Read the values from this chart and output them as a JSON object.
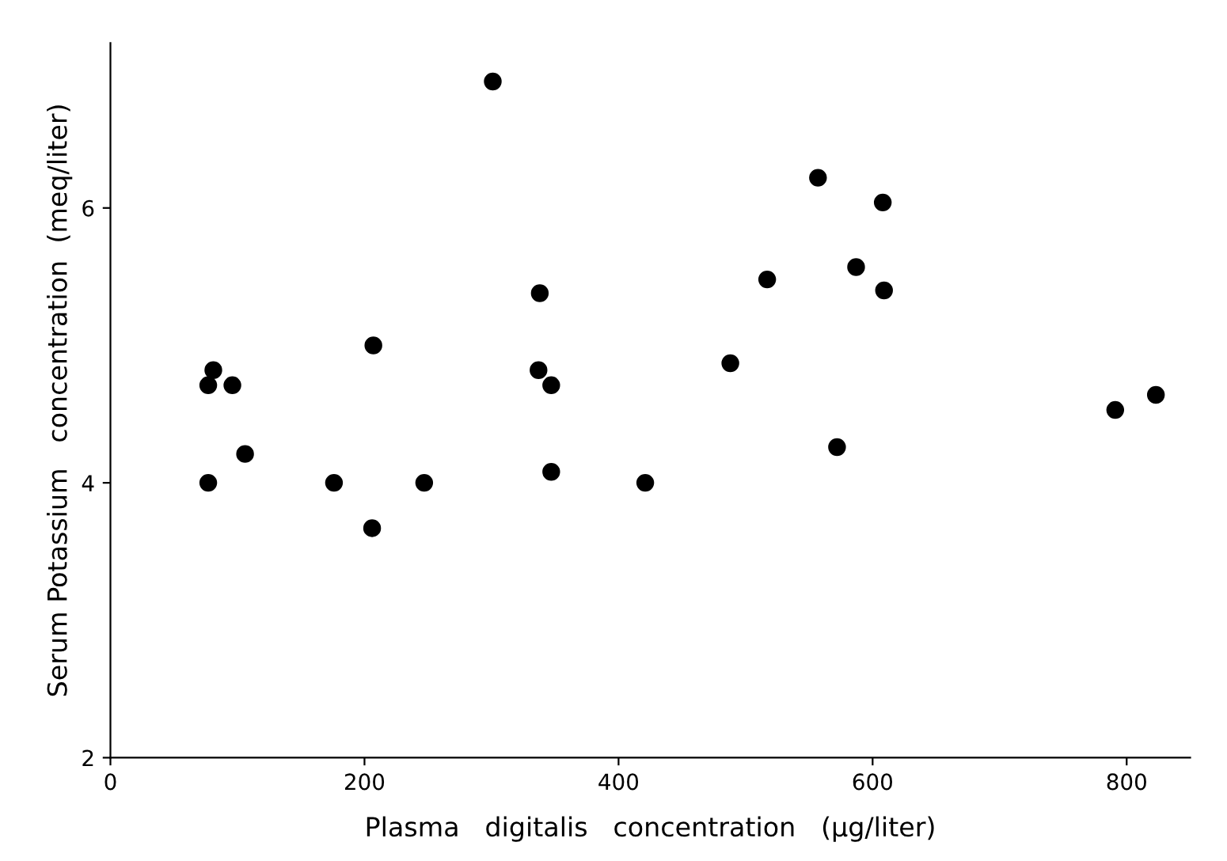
{
  "chart_data": {
    "type": "scatter",
    "xlabel": "Plasma   digitalis   concentration   (μg/liter)",
    "ylabel": "Serum Potassium   concentration  (meq/liter)",
    "x": [
      81,
      77,
      77,
      96,
      106,
      206,
      176,
      207,
      247,
      301,
      337,
      338,
      347,
      347,
      421,
      488,
      517,
      557,
      572,
      587,
      608,
      609,
      791,
      823
    ],
    "series": [
      {
        "color": "#000000",
        "values": [
          4.82,
          4.71,
          4.0,
          4.71,
          4.21,
          3.67,
          4.0,
          5.0,
          4.0,
          6.92,
          4.82,
          5.38,
          4.71,
          4.08,
          4.0,
          4.87,
          5.48,
          6.22,
          4.26,
          5.57,
          6.04,
          5.4,
          4.53,
          4.64
        ]
      }
    ],
    "xlim": [
      0,
      850
    ],
    "ylim": [
      2,
      7.2
    ],
    "xticks": [
      0,
      200,
      400,
      600,
      800
    ],
    "yticks": [
      2,
      4,
      6
    ],
    "marker": "circle",
    "grid": false,
    "legend": false
  }
}
